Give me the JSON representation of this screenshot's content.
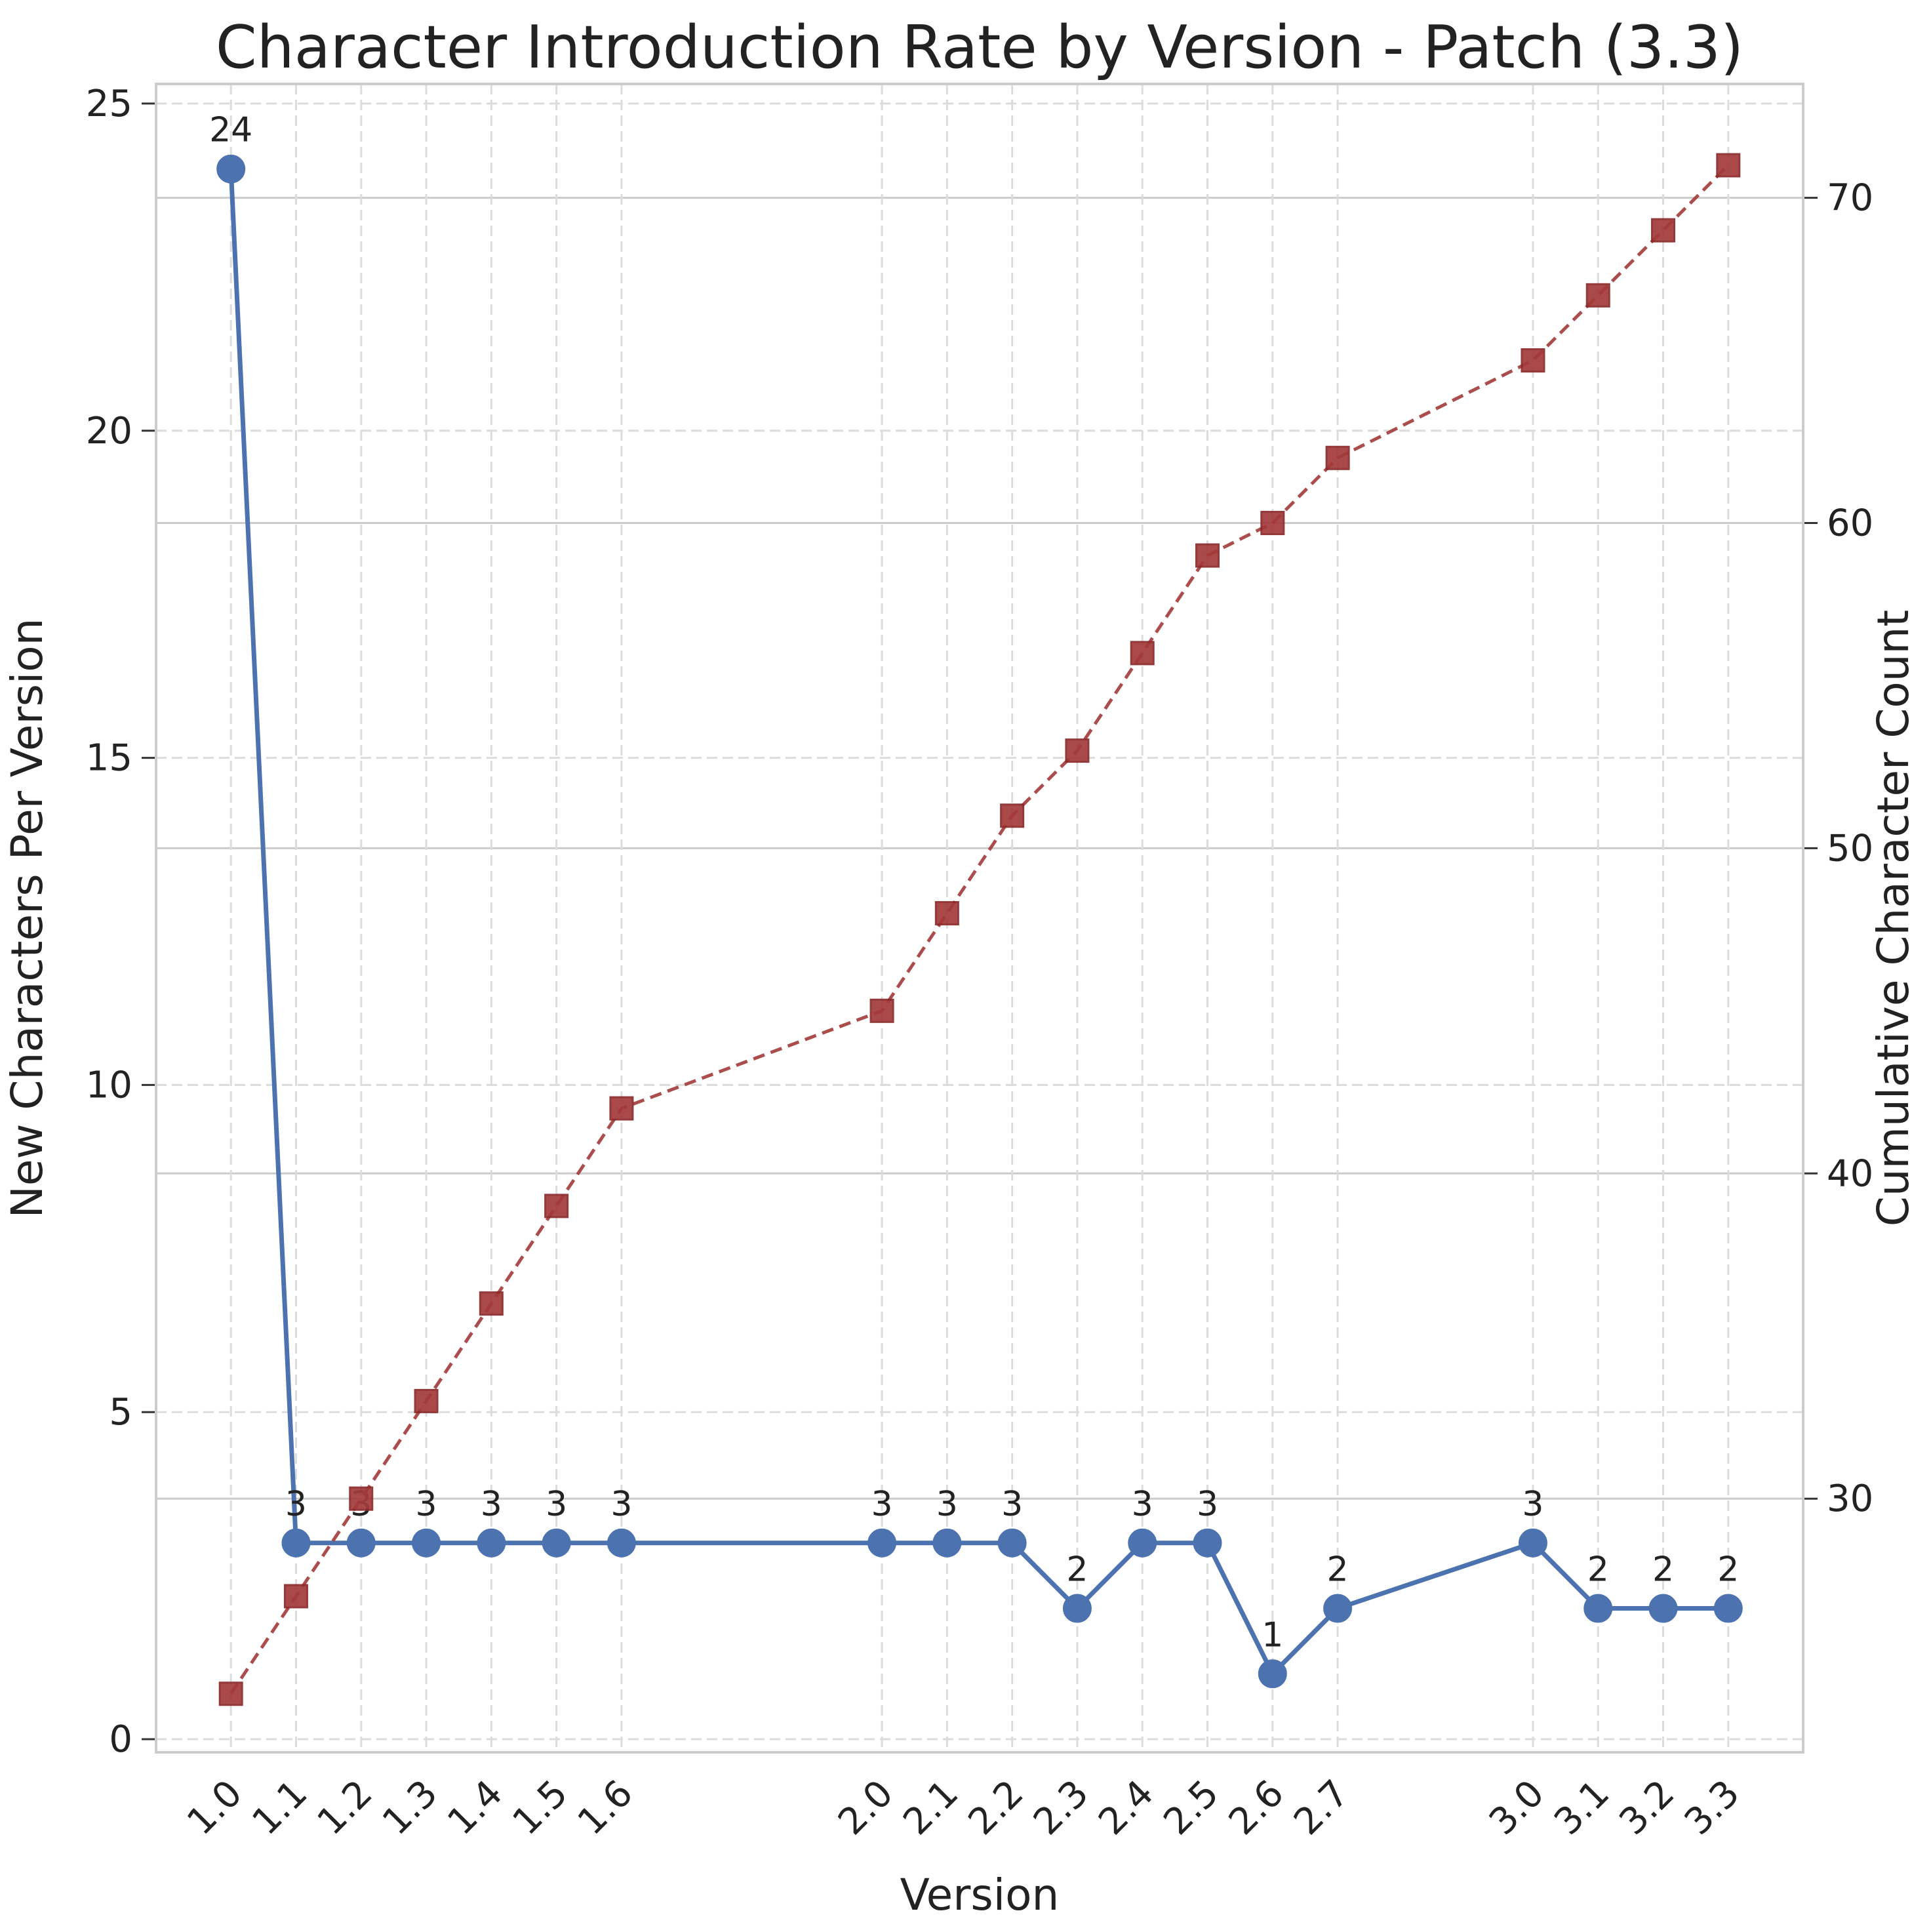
{
  "chart_data": {
    "type": "line",
    "title": "Character Introduction Rate by Version - Patch (3.3)",
    "xlabel": "Version",
    "ylabel": "New Characters Per Version",
    "y2label": "Cumulative Character Count",
    "categories": [
      "1.0",
      "1.1",
      "1.2",
      "1.3",
      "1.4",
      "1.5",
      "1.6",
      "2.0",
      "2.1",
      "2.2",
      "2.3",
      "2.4",
      "2.5",
      "2.6",
      "2.7",
      "3.0",
      "3.1",
      "3.2",
      "3.3"
    ],
    "x": [
      1.0,
      1.1,
      1.2,
      1.3,
      1.4,
      1.5,
      1.6,
      2.0,
      2.1,
      2.2,
      2.3,
      2.4,
      2.5,
      2.6,
      2.7,
      3.0,
      3.1,
      3.2,
      3.3
    ],
    "series": [
      {
        "axis": "left",
        "values": [
          24,
          3,
          3,
          3,
          3,
          3,
          3,
          3,
          3,
          3,
          2,
          3,
          3,
          1,
          2,
          3,
          2,
          2,
          2
        ],
        "color": "#4c72b0",
        "marker": "circle",
        "linestyle": "solid",
        "data_labels": [
          "24",
          "3",
          "3",
          "3",
          "3",
          "3",
          "3",
          "3",
          "3",
          "3",
          "2",
          "3",
          "3",
          "1",
          "2",
          "3",
          "2",
          "2",
          "2"
        ]
      },
      {
        "axis": "right",
        "values": [
          24,
          27,
          30,
          33,
          36,
          39,
          42,
          45,
          48,
          51,
          53,
          56,
          59,
          60,
          62,
          65,
          67,
          69,
          71
        ],
        "color": "#a33a3a",
        "marker": "square",
        "linestyle": "dashed"
      }
    ],
    "xlim": [
      0.885,
      3.415
    ],
    "ylim": [
      -0.2,
      25.3
    ],
    "y2lim": [
      22.2,
      73.5
    ],
    "yticks": [
      0,
      5,
      10,
      15,
      20,
      25
    ],
    "y2ticks": [
      30,
      40,
      50,
      60,
      70
    ],
    "grid": true,
    "y2label_color": "#8b0000"
  }
}
